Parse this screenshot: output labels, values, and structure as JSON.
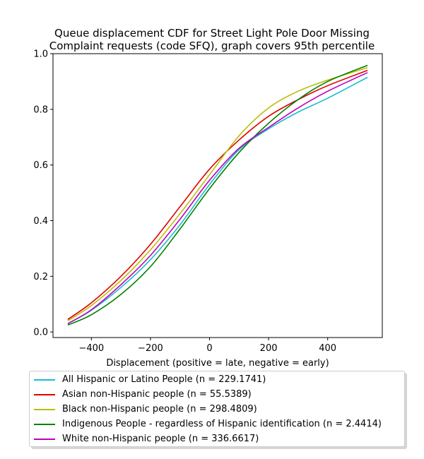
{
  "chart_data": {
    "type": "line",
    "title_line1": "Queue displacement CDF for Street Light Pole Door Missing",
    "title_line2": "Complaint  requests (code SFQ), graph covers 95th percentile",
    "xlabel": "Displacement (positive = late, negative = early)",
    "ylabel": "",
    "xlim": [
      -530,
      585
    ],
    "ylim": [
      -0.02,
      1.0
    ],
    "xticks": [
      -400,
      -200,
      0,
      200,
      400
    ],
    "yticks": [
      0.0,
      0.2,
      0.4,
      0.6,
      0.8,
      1.0
    ],
    "xtick_labels": [
      "−400",
      "−200",
      "0",
      "200",
      "400"
    ],
    "ytick_labels": [
      "0.0",
      "0.2",
      "0.4",
      "0.6",
      "0.8",
      "1.0"
    ],
    "grid": false,
    "legend_position": "below",
    "series": [
      {
        "name": "All Hispanic or Latino People (n = 229.1741)",
        "color": "#17becf",
        "x": [
          -480,
          -400,
          -300,
          -200,
          -100,
          0,
          100,
          200,
          300,
          400,
          535
        ],
        "y": [
          0.03,
          0.078,
          0.16,
          0.26,
          0.385,
          0.53,
          0.655,
          0.73,
          0.79,
          0.84,
          0.915
        ]
      },
      {
        "name": "Asian non-Hispanic people (n = 55.5389)",
        "color": "#e00000",
        "x": [
          -480,
          -400,
          -300,
          -200,
          -100,
          0,
          100,
          200,
          300,
          400,
          535
        ],
        "y": [
          0.045,
          0.105,
          0.2,
          0.315,
          0.45,
          0.585,
          0.69,
          0.775,
          0.835,
          0.885,
          0.94
        ]
      },
      {
        "name": "Black non-Hispanic people (n = 298.4809)",
        "color": "#bcbd00",
        "x": [
          -480,
          -400,
          -300,
          -200,
          -100,
          0,
          100,
          200,
          300,
          400,
          535
        ],
        "y": [
          0.04,
          0.095,
          0.185,
          0.295,
          0.425,
          0.565,
          0.705,
          0.805,
          0.865,
          0.905,
          0.95
        ]
      },
      {
        "name": "Indigenous People - regardless of Hispanic identification (n = 2.4414)",
        "color": "#008000",
        "x": [
          -480,
          -400,
          -300,
          -200,
          -100,
          0,
          100,
          200,
          300,
          400,
          535
        ],
        "y": [
          0.025,
          0.062,
          0.135,
          0.235,
          0.37,
          0.515,
          0.645,
          0.75,
          0.835,
          0.9,
          0.958
        ]
      },
      {
        "name": "White non-Hispanic people (n = 336.6617)",
        "color": "#bf00bf",
        "x": [
          -480,
          -400,
          -300,
          -200,
          -100,
          0,
          100,
          200,
          300,
          400,
          535
        ],
        "y": [
          0.03,
          0.08,
          0.17,
          0.275,
          0.405,
          0.545,
          0.66,
          0.735,
          0.805,
          0.865,
          0.932
        ]
      }
    ]
  }
}
